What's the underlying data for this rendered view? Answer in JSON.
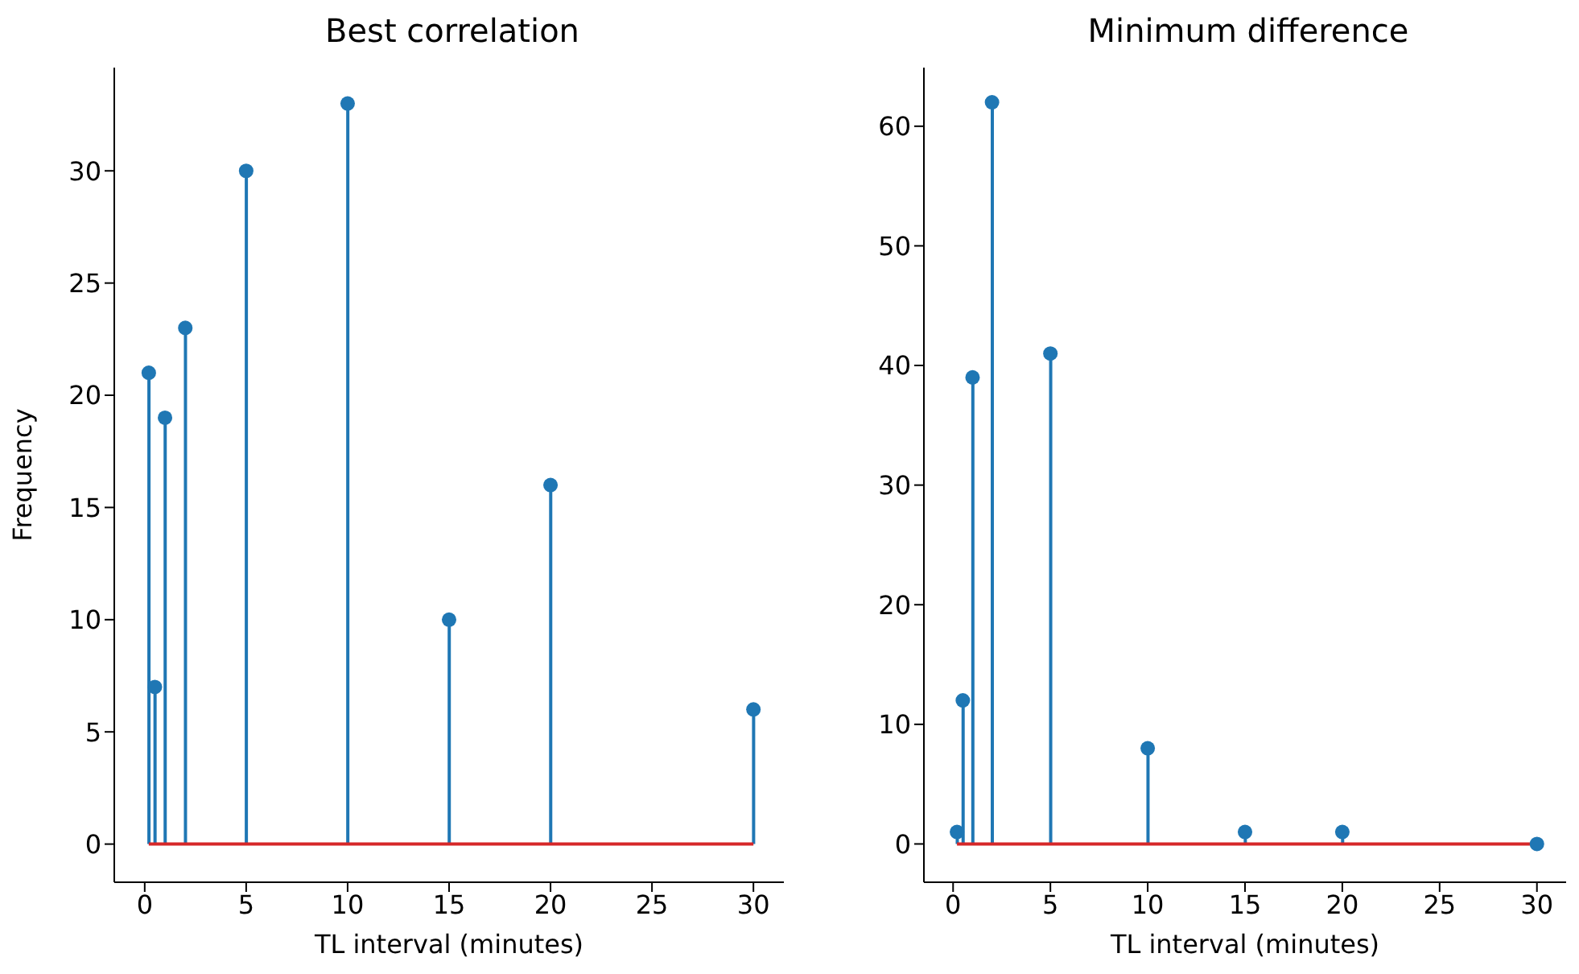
{
  "chart_data": [
    {
      "type": "lollipop",
      "title": "Best correlation",
      "xlabel": "TL interval (minutes)",
      "ylabel": "Frequency",
      "x": [
        0.2,
        0.5,
        1,
        2,
        5,
        10,
        15,
        20,
        30
      ],
      "series": [
        {
          "color": "#1f77b4",
          "values": [
            21,
            7,
            19,
            23,
            30,
            33,
            10,
            16,
            6
          ]
        }
      ],
      "xlim": [
        -1.5,
        31.5
      ],
      "xticks": [
        0,
        5,
        10,
        15,
        20,
        25,
        30
      ],
      "ylim": [
        -1.7,
        34.6
      ],
      "yticks": [
        0,
        5,
        10,
        15,
        20,
        25,
        30
      ],
      "marker": "circle",
      "grid": false,
      "legend": false,
      "ref_lines": [
        {
          "axis": "y",
          "value": 0,
          "color": "#d62728"
        }
      ]
    },
    {
      "type": "lollipop",
      "title": "Minimum difference",
      "xlabel": "TL interval (minutes)",
      "x": [
        0.2,
        0.5,
        1,
        2,
        5,
        10,
        15,
        20,
        30
      ],
      "series": [
        {
          "color": "#1f77b4",
          "values": [
            1,
            12,
            39,
            62,
            41,
            8,
            1,
            1,
            0
          ]
        }
      ],
      "xlim": [
        -1.5,
        31.5
      ],
      "xticks": [
        0,
        5,
        10,
        15,
        20,
        25,
        30
      ],
      "ylim": [
        -3.2,
        64.9
      ],
      "yticks": [
        0,
        10,
        20,
        30,
        40,
        50,
        60
      ],
      "marker": "circle",
      "grid": false,
      "legend": false,
      "ref_lines": [
        {
          "axis": "y",
          "value": 0,
          "color": "#d62728"
        }
      ]
    }
  ]
}
